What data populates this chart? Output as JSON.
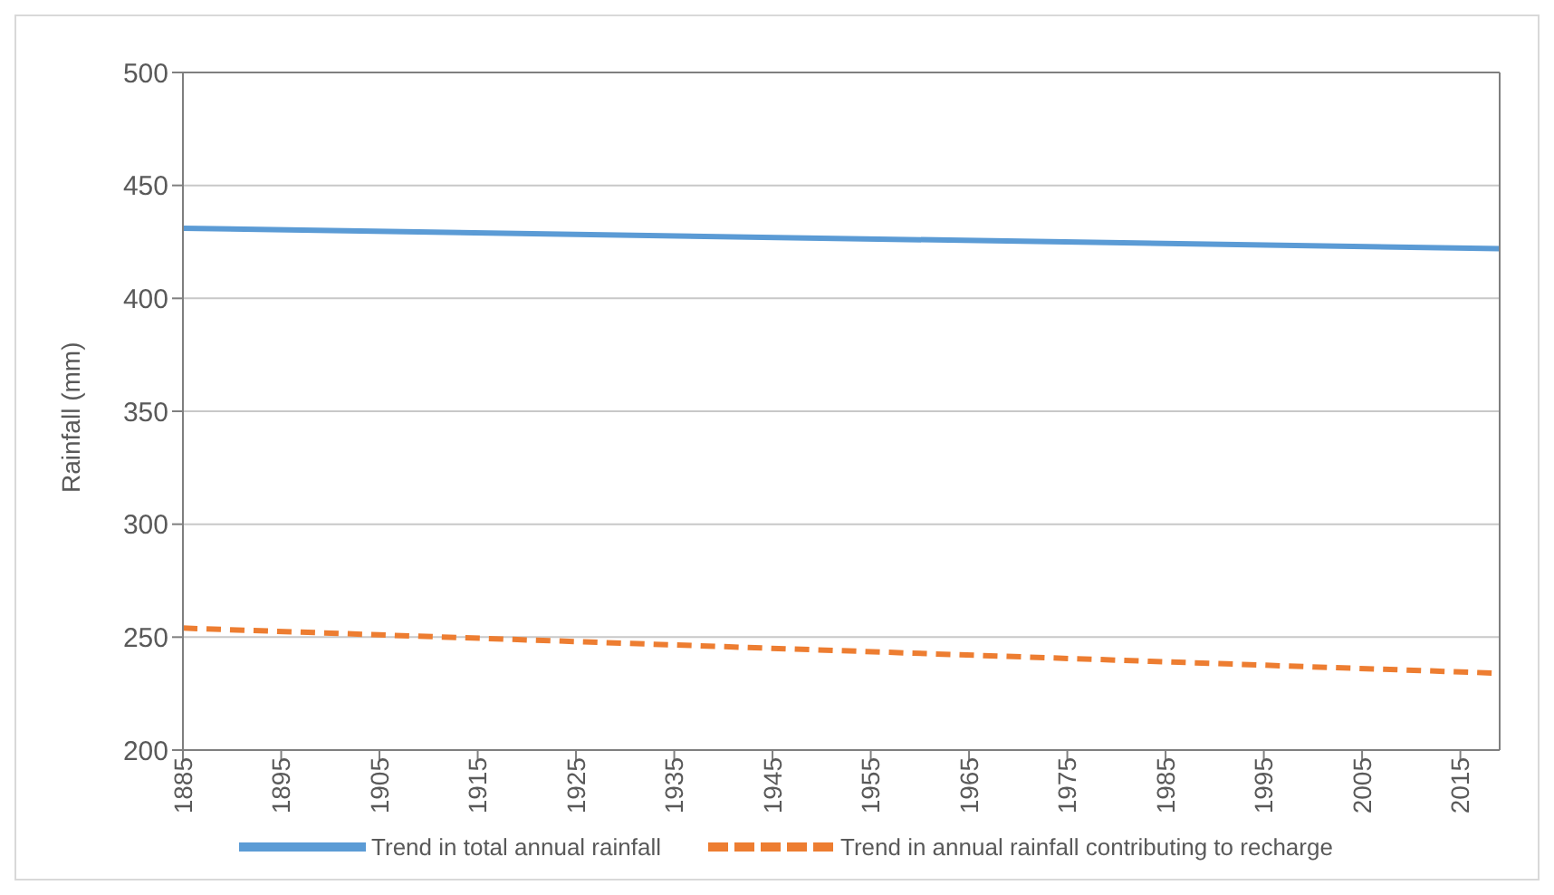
{
  "chart_data": {
    "type": "line",
    "ylabel": "Rainfall (mm)",
    "x": [
      1885,
      2019
    ],
    "series": [
      {
        "name": "Trend in total annual rainfall",
        "color": "#5b9bd5",
        "values": [
          431,
          422
        ],
        "line_style": "solid"
      },
      {
        "name": "Trend in annual rainfall contributing to recharge",
        "color": "#ed7d31",
        "values": [
          254,
          234
        ],
        "line_style": "dashed"
      }
    ],
    "xlim": [
      1885,
      2019
    ],
    "xticks": [
      1885,
      1895,
      1905,
      1915,
      1925,
      1935,
      1945,
      1955,
      1965,
      1975,
      1985,
      1995,
      2005,
      2015
    ],
    "ylim": [
      200,
      500
    ],
    "yticks": [
      200,
      250,
      300,
      350,
      400,
      450,
      500
    ],
    "grid": "y",
    "legend": "bottom",
    "marker": "none"
  }
}
